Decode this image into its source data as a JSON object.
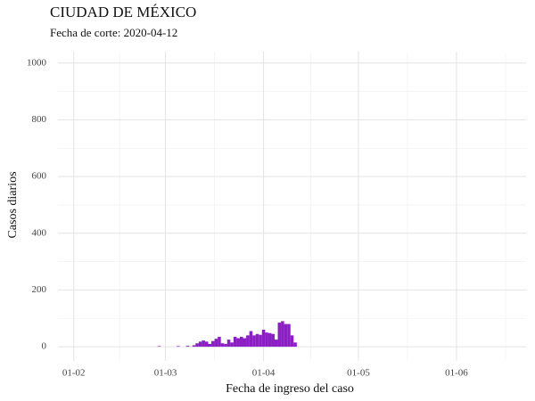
{
  "chart_data": {
    "type": "bar",
    "title": "CIUDAD DE MÉXICO",
    "subtitle": "Fecha de corte: 2020-04-12",
    "x_label": "Fecha de ingreso del caso",
    "y_label": "Casos diarios",
    "color": "#8b1ec4",
    "x": [
      "28-02",
      "05-03",
      "08-03",
      "10-03",
      "11-03",
      "12-03",
      "13-03",
      "14-03",
      "15-03",
      "16-03",
      "17-03",
      "18-03",
      "19-03",
      "20-03",
      "21-03",
      "22-03",
      "23-03",
      "24-03",
      "25-03",
      "26-03",
      "27-03",
      "28-03",
      "29-03",
      "30-03",
      "31-03",
      "01-04",
      "02-04",
      "03-04",
      "04-04",
      "05-04",
      "06-04",
      "07-04",
      "08-04",
      "09-04",
      "10-04",
      "11-04"
    ],
    "values": [
      2,
      2,
      3,
      5,
      12,
      18,
      22,
      18,
      10,
      20,
      28,
      35,
      12,
      10,
      25,
      15,
      35,
      30,
      35,
      30,
      40,
      55,
      40,
      45,
      42,
      60,
      50,
      48,
      45,
      25,
      85,
      90,
      80,
      80,
      40,
      15
    ],
    "xlim": [
      "27-01",
      "23-06"
    ],
    "xticks": [
      "01-02",
      "01-03",
      "01-04",
      "01-05",
      "01-06"
    ],
    "ylim": [
      -50,
      1040
    ],
    "yticks": [
      0,
      200,
      400,
      600,
      800,
      1000
    ],
    "grid": true
  }
}
